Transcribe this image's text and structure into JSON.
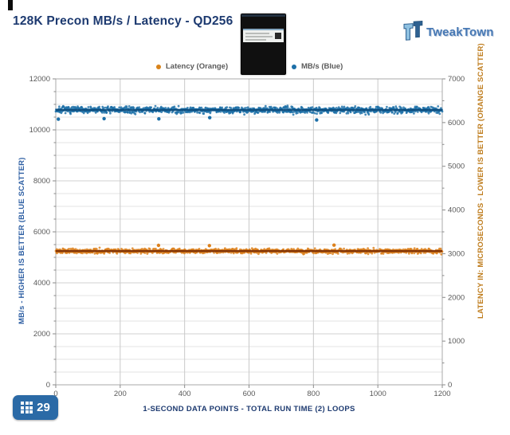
{
  "branding": {
    "logo_text": "TweakTown",
    "logo_icon": "tweaktown-tt-icon",
    "logo_color": "#4678b4"
  },
  "product_image": "black-ssd-drive-photo",
  "legend": [
    {
      "label": "Latency (Orange)",
      "color": "#d9831a"
    },
    {
      "label": "MB/s (Blue)",
      "color": "#1c6fa8"
    }
  ],
  "badge": {
    "value": "29",
    "icon": "grid-icon",
    "color": "#2b6aa6"
  },
  "chart_data": {
    "type": "scatter",
    "title": "128K Precon MB/s / Latency - QD256",
    "xlabel": "1-SECOND DATA POINTS - TOTAL RUN TIME (2) LOOPS",
    "grid": true,
    "legend_position": "top-center",
    "x_axis": {
      "min": 0,
      "max": 1200,
      "major": 200,
      "tick_labels": [
        "0",
        "200",
        "400",
        "600",
        "800",
        "1000",
        "1200"
      ]
    },
    "left_axis": {
      "label": "MB/s - HIGHER IS BETTER (BLUE SCATTER)",
      "min": 0,
      "max": 12000,
      "major": 2000,
      "minor": 500,
      "tick_labels": [
        "0",
        "2000",
        "4000",
        "6000",
        "8000",
        "10000",
        "12000"
      ],
      "color": "#2e5fa3"
    },
    "right_axis": {
      "label": "LATENCY IN: MICROSECONDS - LOWER IS BETTER (ORANGE SCATTER)",
      "min": 0,
      "max": 7000,
      "major": 1000,
      "minor": 500,
      "tick_labels": [
        "0",
        "1000",
        "2000",
        "3000",
        "4000",
        "5000",
        "6000",
        "7000"
      ],
      "color": "#bf7d1e"
    },
    "series": [
      {
        "name": "MB/s (Blue)",
        "axis": "left",
        "band_style": "dense-scatter",
        "points_count": 1200,
        "mean": 10780,
        "spread": 130,
        "color": "#1c6fa8",
        "trend_color": "#0d4a7a",
        "outliers": [
          [
            8,
            10420
          ],
          [
            150,
            10440
          ],
          [
            320,
            10430
          ],
          [
            478,
            10480
          ],
          [
            810,
            10390
          ]
        ]
      },
      {
        "name": "Latency (Orange)",
        "axis": "right",
        "band_style": "dense-scatter",
        "points_count": 1200,
        "mean": 3060,
        "spread": 55,
        "color": "#dd811c",
        "trend_color": "#7a2d05",
        "outliers": [
          [
            319,
            3190
          ],
          [
            477,
            3185
          ],
          [
            864,
            3195
          ]
        ]
      }
    ]
  }
}
